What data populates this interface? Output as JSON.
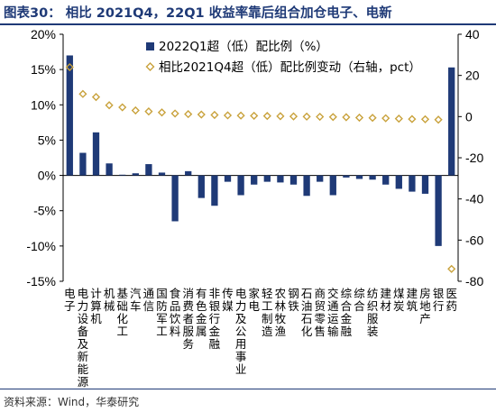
{
  "title": "图表30：  相比 2021Q4，22Q1 收益率靠后组合加仓电子、电新",
  "source": "资料来源：Wind，华泰研究",
  "chart_data": {
    "type": "bar",
    "categories": [
      "电子",
      "电力设备及新能源",
      "计算机",
      "机械",
      "基础化工",
      "汽车",
      "通信",
      "国防军工",
      "食品饮料",
      "消费者服务",
      "有色金属",
      "非银行金融",
      "传媒",
      "电力及公用事业",
      "家电",
      "轻工制造",
      "农林牧渔",
      "钢铁",
      "石油石化",
      "商贸零售",
      "交通运输",
      "综合金融",
      "综合",
      "纺织服装",
      "建材",
      "煤炭",
      "建筑",
      "房地产",
      "银行",
      "医药"
    ],
    "left_axis": {
      "ylim": [
        -15,
        20
      ],
      "ticks": [
        "-15%",
        "-10%",
        "-5%",
        "0%",
        "5%",
        "10%",
        "15%",
        "20%"
      ],
      "tick_values": [
        -15,
        -10,
        -5,
        0,
        5,
        10,
        15,
        20
      ]
    },
    "right_axis": {
      "ylim": [
        -80,
        40
      ],
      "ticks": [
        "-80",
        "-60",
        "-40",
        "-20",
        "0",
        "20",
        "40"
      ],
      "tick_values": [
        -80,
        -60,
        -40,
        -20,
        0,
        20,
        40
      ]
    },
    "series": [
      {
        "name": "2022Q1超（低）配比例（%）",
        "type": "bar",
        "axis": "left",
        "color": "#1f3a77",
        "values": [
          17.0,
          3.2,
          6.1,
          1.7,
          0.1,
          0.3,
          1.6,
          0.4,
          -6.5,
          0.6,
          -3.2,
          -4.3,
          -0.9,
          -2.8,
          -1.3,
          -0.9,
          -1.0,
          -1.3,
          -2.9,
          -0.9,
          -2.8,
          -0.3,
          -0.5,
          -0.6,
          -1.3,
          -1.9,
          -2.3,
          -2.6,
          -10.0,
          15.3
        ]
      },
      {
        "name": "相比2021Q4超（低）配比例变动（右轴，pct）",
        "type": "scatter",
        "axis": "right",
        "color": "#c9a23c",
        "values": [
          24,
          11,
          9.5,
          5.5,
          4.5,
          3,
          2.5,
          2,
          1.5,
          1.2,
          1,
          0.8,
          0.6,
          0.5,
          0.4,
          0.3,
          0.2,
          0.1,
          0,
          -0.1,
          -0.2,
          -0.3,
          -0.5,
          -0.6,
          -0.8,
          -1,
          -1.2,
          -1.3,
          -1.5,
          -74
        ]
      }
    ],
    "legend": "top-right"
  }
}
